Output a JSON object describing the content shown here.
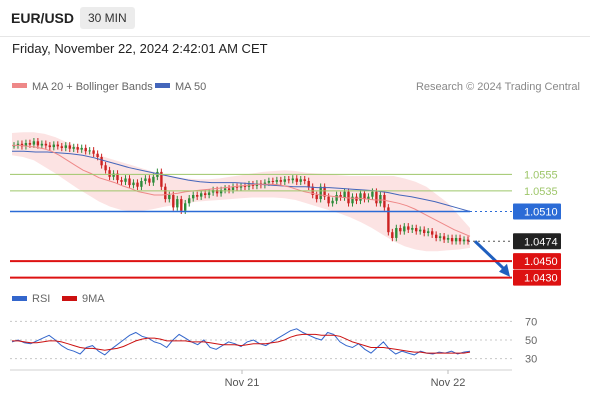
{
  "header": {
    "pair": "EUR/USD",
    "timeframe": "30 MIN",
    "datetime": "Friday, November 22, 2024 2:42:01 AM CET"
  },
  "legend": {
    "ma20": "MA 20 + Bollinger Bands",
    "ma50": "MA 50",
    "credit": "Research © 2024 Trading Central",
    "rsi": "RSI",
    "rsi_ma": "9MA"
  },
  "colors": {
    "bull": "#2e8b3a",
    "bear": "#cc2222",
    "ma20": "#ee8888",
    "bollinger_fill": "#fbdada",
    "ma50": "#4466bb",
    "resistance": "#9ec66a",
    "pivot": "#2b6bd6",
    "support": "#dd1111",
    "rsi": "#3366cc",
    "rsi_ma": "#cc1111",
    "last_label": "#222222",
    "arrow": "#1f5fbf"
  },
  "chart_data": [
    {
      "type": "candlestick",
      "title": "EUR/USD",
      "timeframe": "30 MIN",
      "y_range": [
        1.0415,
        1.0645
      ],
      "x_labels": [
        "Nov 21",
        "Nov 22"
      ],
      "levels": [
        {
          "value": 1.0555,
          "label": "1.0555",
          "kind": "resistance"
        },
        {
          "value": 1.0535,
          "label": "1.0535",
          "kind": "resistance"
        },
        {
          "value": 1.051,
          "label": "1.0510",
          "kind": "pivot"
        },
        {
          "value": 1.0474,
          "label": "1.0474",
          "kind": "last"
        },
        {
          "value": 1.045,
          "label": "1.0450",
          "kind": "support"
        },
        {
          "value": 1.043,
          "label": "1.0430",
          "kind": "support"
        }
      ],
      "closes": [
        1.059,
        1.0592,
        1.0589,
        1.0593,
        1.0591,
        1.0595,
        1.059,
        1.0592,
        1.059,
        1.0588,
        1.0591,
        1.0589,
        1.0587,
        1.059,
        1.0586,
        1.0588,
        1.0585,
        1.0587,
        1.0583,
        1.0584,
        1.058,
        1.0576,
        1.0566,
        1.056,
        1.0552,
        1.0556,
        1.0548,
        1.0546,
        1.055,
        1.0542,
        1.0545,
        1.054,
        1.0547,
        1.055,
        1.0545,
        1.0552,
        1.0558,
        1.054,
        1.0525,
        1.053,
        1.0515,
        1.0525,
        1.0511,
        1.052,
        1.0526,
        1.053,
        1.0528,
        1.0532,
        1.053,
        1.0533,
        1.0536,
        1.0532,
        1.0536,
        1.0538,
        1.0536,
        1.054,
        1.0539,
        1.0541,
        1.054,
        1.0543,
        1.0541,
        1.0544,
        1.0542,
        1.0545,
        1.0547,
        1.0546,
        1.0548,
        1.0546,
        1.0549,
        1.0548,
        1.055,
        1.0546,
        1.0549,
        1.0547,
        1.054,
        1.053,
        1.0525,
        1.054,
        1.0528,
        1.052,
        1.0523,
        1.053,
        1.0527,
        1.0534,
        1.052,
        1.0528,
        1.0523,
        1.0532,
        1.0525,
        1.0528,
        1.0534,
        1.052,
        1.053,
        1.0515,
        1.0485,
        1.0478,
        1.049,
        1.0486,
        1.0492,
        1.0488,
        1.049,
        1.0486,
        1.0488,
        1.0484,
        1.0486,
        1.0482,
        1.0478,
        1.048,
        1.0476,
        1.0478,
        1.0474,
        1.0478,
        1.0474,
        1.0476,
        1.0474
      ],
      "ma20": [
        1.059,
        1.059,
        1.0589,
        1.0588,
        1.0586,
        1.0583,
        1.0578,
        1.0572,
        1.0566,
        1.056,
        1.0556,
        1.0551,
        1.0548,
        1.0545,
        1.0541,
        1.0538,
        1.0534,
        1.0532,
        1.053,
        1.053,
        1.0531,
        1.0532,
        1.0534,
        1.0535,
        1.0536,
        1.0537,
        1.0538,
        1.0539,
        1.054,
        1.0541,
        1.0542,
        1.0543,
        1.0543,
        1.0543,
        1.0542,
        1.054,
        1.0537,
        1.0534,
        1.0532,
        1.053,
        1.0529,
        1.0528,
        1.0527,
        1.0526,
        1.0526,
        1.0525,
        1.0524,
        1.0524,
        1.0522,
        1.052,
        1.0517,
        1.0513,
        1.0508,
        1.0503,
        1.0498,
        1.0493,
        1.0488,
        1.0484,
        1.048
      ],
      "ma50": [
        1.0583,
        1.0583,
        1.0582,
        1.0582,
        1.0581,
        1.058,
        1.0578,
        1.0575,
        1.0571,
        1.0567,
        1.0563,
        1.056,
        1.0557,
        1.0554,
        1.0551,
        1.0548,
        1.0546,
        1.0545,
        1.0545,
        1.0545,
        1.0544,
        1.0543,
        1.0542,
        1.0541,
        1.054,
        1.054,
        1.0539,
        1.0539,
        1.0538,
        1.0537,
        1.0536,
        1.0535,
        1.0533,
        1.053,
        1.0528,
        1.0525,
        1.0522,
        1.0518,
        1.0514,
        1.051
      ],
      "bb_upper": [
        1.0605,
        1.0606,
        1.0606,
        1.0604,
        1.06,
        1.0594,
        1.0588,
        1.0583,
        1.0578,
        1.0574,
        1.057,
        1.0566,
        1.0562,
        1.0558,
        1.0555,
        1.0552,
        1.055,
        1.0549,
        1.0549,
        1.055,
        1.0552,
        1.0554,
        1.0556,
        1.0558,
        1.0559,
        1.056,
        1.0559,
        1.0557,
        1.0556,
        1.0555,
        1.0554,
        1.0553,
        1.0553,
        1.0553,
        1.0553,
        1.0553,
        1.055,
        1.0546,
        1.054,
        1.053,
        1.052,
        1.0505,
        1.049
      ],
      "bb_lower": [
        1.0578,
        1.0576,
        1.0572,
        1.0564,
        1.0556,
        1.0547,
        1.0538,
        1.053,
        1.0522,
        1.0516,
        1.0512,
        1.051,
        1.0511,
        1.0513,
        1.0516,
        1.0518,
        1.052,
        1.0522,
        1.0523,
        1.0524,
        1.0525,
        1.0526,
        1.0527,
        1.0527,
        1.0527,
        1.0526,
        1.0524,
        1.052,
        1.0516,
        1.0512,
        1.0508,
        1.0503,
        1.0497,
        1.049,
        1.0482,
        1.0474,
        1.0468,
        1.0464,
        1.0462,
        1.0462,
        1.0463,
        1.0464,
        1.0466
      ]
    },
    {
      "type": "line",
      "title": "RSI",
      "y_range": [
        20,
        80
      ],
      "y_ticks": [
        30,
        50,
        70
      ],
      "series": [
        {
          "name": "RSI",
          "values": [
            48,
            50,
            47,
            46,
            49,
            52,
            55,
            50,
            44,
            40,
            38,
            35,
            42,
            44,
            38,
            34,
            40,
            45,
            50,
            55,
            58,
            54,
            52,
            48,
            46,
            42,
            50,
            56,
            52,
            48,
            45,
            50,
            42,
            40,
            44,
            48,
            46,
            43,
            48,
            50,
            46,
            44,
            48,
            52,
            56,
            60,
            62,
            58,
            55,
            52,
            50,
            58,
            56,
            48,
            44,
            42,
            46,
            40,
            36,
            42,
            48,
            40,
            35,
            38,
            36,
            34,
            38,
            36,
            35,
            37,
            36,
            38,
            35,
            37,
            38
          ]
        },
        {
          "name": "9MA",
          "values": [
            49,
            49,
            48,
            47,
            47,
            48,
            49,
            49,
            48,
            46,
            44,
            42,
            41,
            41,
            40,
            39,
            40,
            41,
            43,
            46,
            49,
            51,
            52,
            52,
            51,
            49,
            49,
            49,
            49,
            48,
            48,
            48,
            47,
            46,
            45,
            45,
            45,
            44,
            45,
            46,
            46,
            46,
            47,
            48,
            50,
            53,
            55,
            56,
            56,
            56,
            55,
            55,
            55,
            54,
            51,
            48,
            46,
            44,
            42,
            42,
            42,
            41,
            40,
            39,
            38,
            37,
            37,
            36,
            36,
            36,
            36,
            36,
            36,
            36,
            37
          ]
        }
      ]
    }
  ]
}
